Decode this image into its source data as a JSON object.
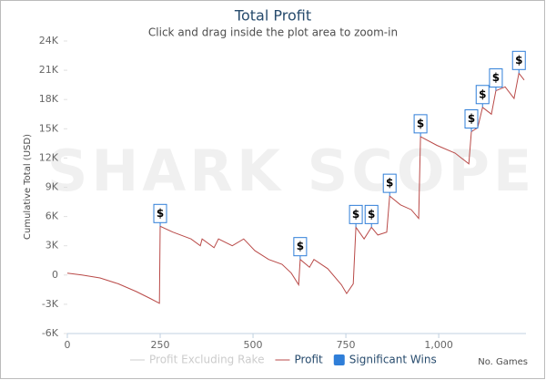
{
  "chart_data": {
    "type": "line",
    "title": "Total Profit",
    "subtitle": "Click and drag inside the plot area to zoom-in",
    "watermark": "SHARK SCOPE",
    "y_label": "Cumulative Total (USD)",
    "x_label": "No. Games",
    "xlim": [
      0,
      1235
    ],
    "xticks": [
      0,
      250,
      500,
      750,
      {
        "value": 1000,
        "label": "1,000"
      }
    ],
    "ylim": [
      -6000,
      24000
    ],
    "yticks": [
      {
        "value": -6000,
        "label": "-6K"
      },
      {
        "value": -3000,
        "label": "-3K"
      },
      0,
      {
        "value": 3000,
        "label": "3K"
      },
      {
        "value": 6000,
        "label": "6K"
      },
      {
        "value": 9000,
        "label": "9K"
      },
      {
        "value": 12000,
        "label": "12K"
      },
      {
        "value": 15000,
        "label": "15K"
      },
      {
        "value": 18000,
        "label": "18K"
      },
      {
        "value": 21000,
        "label": "21K"
      },
      {
        "value": 24000,
        "label": "24K"
      }
    ],
    "grid": false,
    "series": [
      {
        "name": "Profit Excluding Rake",
        "color": "#cccccc",
        "visible": false
      },
      {
        "name": "Profit",
        "color": "#b94a48",
        "visible": true,
        "x": [
          0,
          39,
          88,
          137,
          186,
          223,
          248,
          250,
          284,
          333,
          358,
          363,
          395,
          407,
          444,
          475,
          505,
          542,
          578,
          603,
          623,
          627,
          652,
          664,
          701,
          738,
          752,
          770,
          777,
          799,
          819,
          836,
          860,
          868,
          897,
          926,
          946,
          951,
          995,
          1044,
          1081,
          1088,
          1105,
          1118,
          1142,
          1154,
          1179,
          1203,
          1216,
          1230
        ],
        "values": [
          200,
          0,
          -300,
          -900,
          -1700,
          -2400,
          -2900,
          5000,
          4400,
          3700,
          3000,
          3700,
          2800,
          3700,
          3000,
          3700,
          2500,
          1600,
          1100,
          200,
          -1000,
          1600,
          800,
          1600,
          650,
          -1000,
          -1900,
          -900,
          4900,
          3700,
          4900,
          4100,
          4400,
          8100,
          7200,
          6700,
          5800,
          14200,
          13300,
          12500,
          11400,
          14700,
          15100,
          17200,
          16500,
          18900,
          19300,
          18100,
          20700,
          20000
        ]
      }
    ],
    "significant_wins": {
      "name": "Significant Wins",
      "color": "#2f7ed8",
      "label": "$",
      "x": [
        250,
        627,
        777,
        819,
        868,
        951,
        1088,
        1118,
        1154,
        1216
      ],
      "values": [
        5000,
        1600,
        4900,
        4900,
        8100,
        14200,
        14700,
        17200,
        18900,
        20700
      ]
    }
  }
}
